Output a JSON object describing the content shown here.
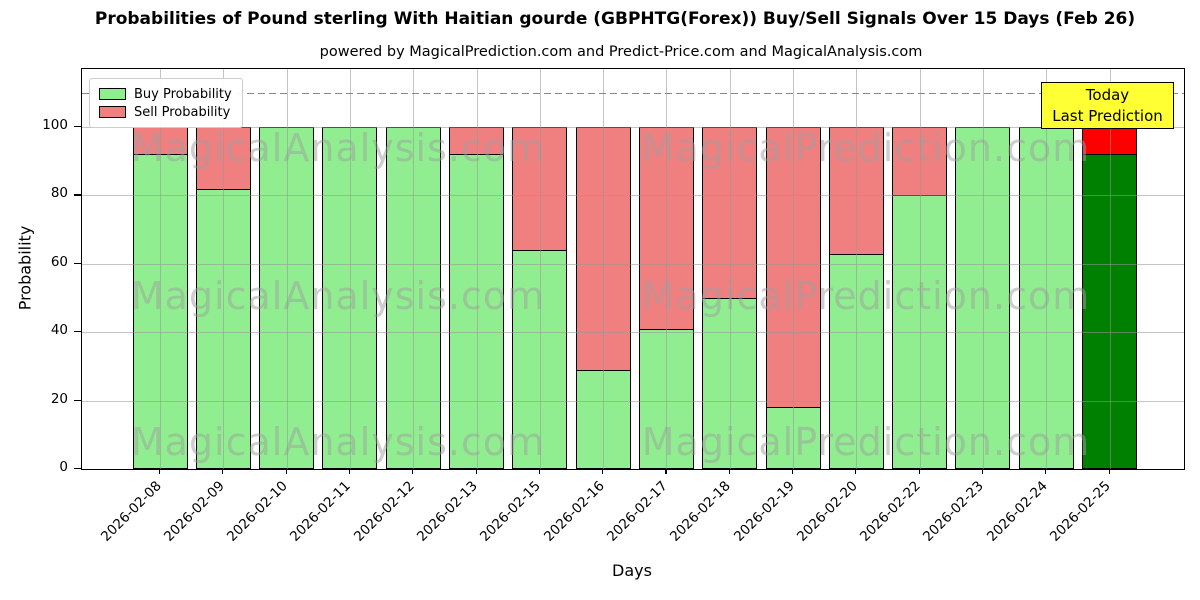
{
  "chart": {
    "title": "Probabilities of Pound sterling With Haitian gourde (GBPHTG(Forex)) Buy/Sell Signals Over 15 Days (Feb 26)",
    "subtitle": "powered by MagicalPrediction.com and Predict-Price.com and MagicalAnalysis.com",
    "xlabel": "Days",
    "ylabel": "Probability",
    "today_label": {
      "line1": "Today",
      "line2": "Last Prediction"
    },
    "watermark_left": "MagicalAnalysis.com",
    "watermark_right": "MagicalPrediction.com"
  },
  "chart_data": {
    "type": "bar",
    "stacked": true,
    "title": "Probabilities of Pound sterling With Haitian gourde (GBPHTG(Forex)) Buy/Sell Signals Over 15 Days (Feb 26)",
    "xlabel": "Days",
    "ylabel": "Probability",
    "categories": [
      "2026-02-08",
      "2026-02-09",
      "2026-02-10",
      "2026-02-11",
      "2026-02-12",
      "2026-02-13",
      "2026-02-15",
      "2026-02-16",
      "2026-02-17",
      "2026-02-18",
      "2026-02-19",
      "2026-02-20",
      "2026-02-22",
      "2026-02-23",
      "2026-02-24",
      "2026-02-25"
    ],
    "series": [
      {
        "name": "Buy Probability",
        "color": "#90ee90",
        "values": [
          92,
          82,
          100,
          100,
          100,
          92,
          64,
          29,
          41,
          50,
          18,
          63,
          80,
          100,
          100,
          92
        ]
      },
      {
        "name": "Sell Probability",
        "color": "#f08080",
        "values": [
          8,
          18,
          0,
          0,
          0,
          8,
          36,
          71,
          59,
          50,
          82,
          37,
          20,
          0,
          0,
          8
        ]
      }
    ],
    "today_bar": {
      "category": "2026-02-25",
      "buy_color": "#008000",
      "sell_color": "#ff0000"
    },
    "legend": [
      {
        "label": "Buy Probability",
        "color": "#90ee90"
      },
      {
        "label": "Sell Probability",
        "color": "#f08080"
      }
    ],
    "legend_position": "upper left",
    "ylim": [
      0,
      117
    ],
    "yticks": [
      0,
      20,
      40,
      60,
      80,
      100
    ],
    "dashed_line_y": 110,
    "grid": true,
    "today_box_bg": "#ffff33"
  }
}
